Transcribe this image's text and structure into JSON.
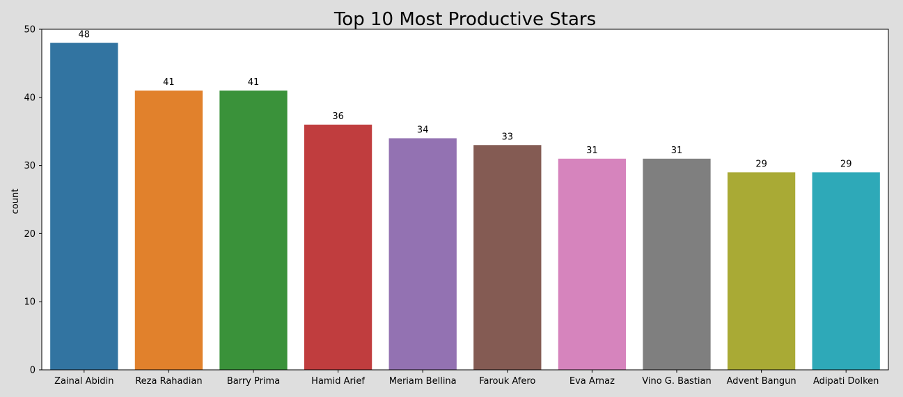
{
  "chart_data": {
    "type": "bar",
    "title": "Top 10 Most Productive Stars",
    "xlabel": "",
    "ylabel": "count",
    "categories": [
      "Zainal Abidin",
      "Reza Rahadian",
      "Barry Prima",
      "Hamid Arief",
      "Meriam Bellina",
      "Farouk Afero",
      "Eva Arnaz",
      "Vino G. Bastian",
      "Advent Bangun",
      "Adipati Dolken"
    ],
    "values": [
      48,
      41,
      41,
      36,
      34,
      33,
      31,
      31,
      29,
      29
    ],
    "data_labels": [
      "48",
      "41",
      "41",
      "36",
      "34",
      "33",
      "31",
      "31",
      "29",
      "29"
    ],
    "colors": [
      "#3274a1",
      "#e1812c",
      "#3a923a",
      "#c03d3e",
      "#9372b2",
      "#845b53",
      "#d684bd",
      "#7f7f7f",
      "#a9aa35",
      "#2ea9b8"
    ],
    "ylim": [
      0,
      50
    ],
    "yticks": [
      0,
      10,
      20,
      30,
      40,
      50
    ],
    "grid": false,
    "legend": false,
    "plot_background": "#ffffff",
    "figure_background": "#dedede"
  }
}
